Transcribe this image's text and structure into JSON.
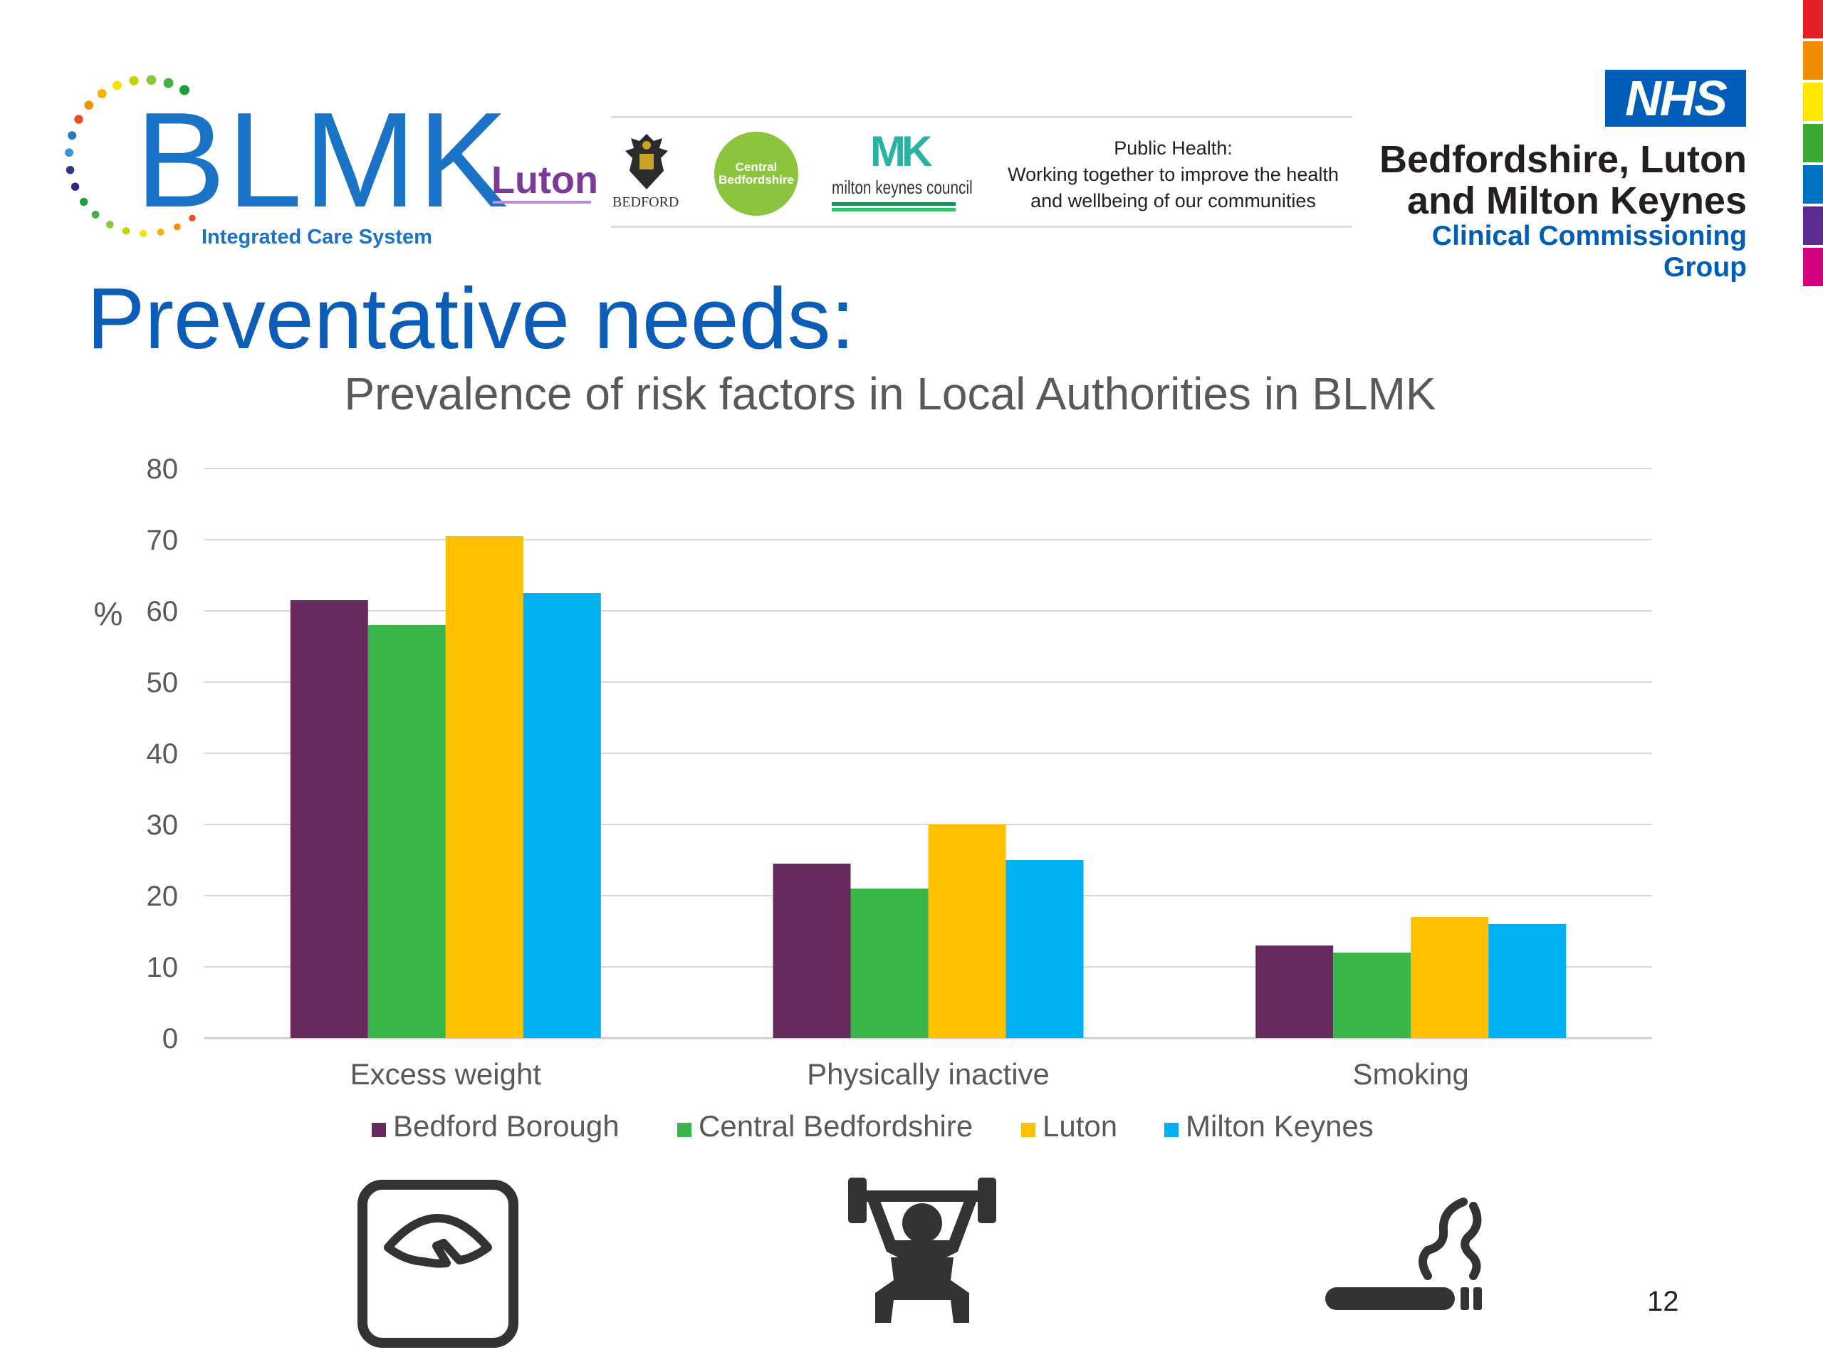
{
  "header": {
    "blmk_logo": {
      "word": "BLMK",
      "subtitle": "Integrated Care System"
    },
    "partners": {
      "luton": "Luton",
      "bedford": "BEDFORD",
      "central_bedfordshire": "Central Bedfordshire",
      "milton_keynes": "milton keynes council",
      "milton_keynes_mark": "MK",
      "public_health": {
        "line1": "Public Health:",
        "line2": "Working together to improve the health",
        "line3": "and wellbeing of our communities"
      }
    },
    "nhs": {
      "badge": "NHS",
      "line1": "Bedfordshire, Luton",
      "line2": "and Milton Keynes",
      "line3": "Clinical Commissioning Group"
    }
  },
  "page": {
    "title": "Preventative needs:",
    "number": "12"
  },
  "colors": {
    "strip": [
      "#e31e24",
      "#f28c00",
      "#ffe800",
      "#3aaa35",
      "#0070c0",
      "#5b2c8f",
      "#d4007f"
    ],
    "blmk_dots": [
      "#1a9e3e",
      "#43b047",
      "#8cc63f",
      "#c8d400",
      "#f5e400",
      "#f9b200",
      "#f39200",
      "#e94e1b",
      "#2a79c4",
      "#3b94d9",
      "#293a8f",
      "#2e2a7a"
    ]
  },
  "chart_data": {
    "type": "bar",
    "title": "Prevalence of risk factors in Local Authorities in BLMK",
    "xlabel": "",
    "ylabel": "%",
    "ylim": [
      0,
      80
    ],
    "yticks": [
      0,
      10,
      20,
      30,
      40,
      50,
      60,
      70,
      80
    ],
    "grid": true,
    "legend": "bottom",
    "categories": [
      "Excess weight",
      "Physically inactive",
      "Smoking"
    ],
    "series": [
      {
        "name": "Bedford Borough",
        "color": "#662a5d",
        "values": [
          61.5,
          24.5,
          13
        ]
      },
      {
        "name": "Central Bedfordshire",
        "color": "#3ab54a",
        "values": [
          58,
          21,
          12
        ]
      },
      {
        "name": "Luton",
        "color": "#ffc000",
        "values": [
          70.5,
          30,
          17
        ]
      },
      {
        "name": "Milton Keynes",
        "color": "#00b0f0",
        "values": [
          62.5,
          25,
          16
        ]
      }
    ],
    "icons": [
      "weighing-scale-icon",
      "weightlifting-icon",
      "cigarette-icon"
    ]
  }
}
